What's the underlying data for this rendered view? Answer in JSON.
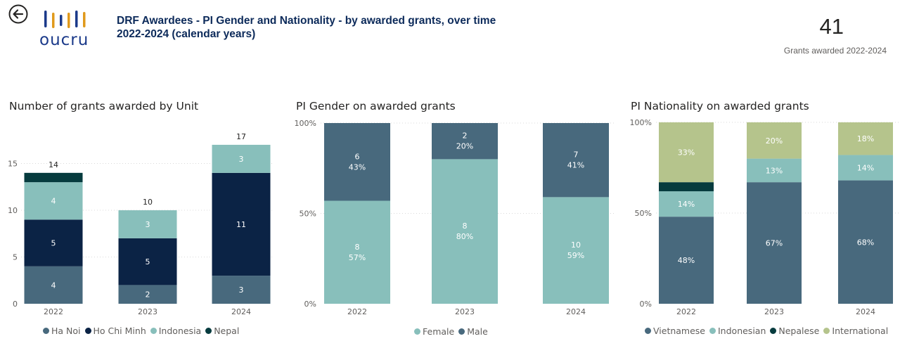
{
  "header": {
    "logo_text": "oucru",
    "title_line1": "DRF Awardees - PI Gender and Nationality - by awarded grants, over time",
    "title_line2": "2022-2024 (calendar years)",
    "kpi_value": "41",
    "kpi_label": "Grants awarded 2022-2024"
  },
  "colors": {
    "ha_noi": "#48697d",
    "ho_chi_minh": "#0b2345",
    "indonesia": "#88bfbb",
    "nepal": "#063b3e",
    "female": "#88bfbb",
    "male": "#48697d",
    "vietnamese": "#48697d",
    "indonesian": "#88bfbb",
    "nepalese": "#063b3e",
    "international": "#b5c48c"
  },
  "chart_data": [
    {
      "type": "bar",
      "stacked": true,
      "title": "Number of grants awarded by Unit",
      "categories": [
        "2022",
        "2023",
        "2024"
      ],
      "series": [
        {
          "name": "Ha Noi",
          "key": "ha_noi",
          "values": [
            4,
            2,
            3
          ],
          "labels": [
            "4",
            "2",
            "3"
          ]
        },
        {
          "name": "Ho Chi Minh",
          "key": "ho_chi_minh",
          "values": [
            5,
            5,
            11
          ],
          "labels": [
            "5",
            "5",
            "11"
          ]
        },
        {
          "name": "Indonesia",
          "key": "indonesia",
          "values": [
            4,
            3,
            3
          ],
          "labels": [
            "4",
            "3",
            "3"
          ]
        },
        {
          "name": "Nepal",
          "key": "nepal",
          "values": [
            1,
            0,
            0
          ],
          "labels": [
            "",
            "",
            ""
          ]
        }
      ],
      "totals": [
        "14",
        "10",
        "17"
      ],
      "yticks": [
        "0",
        "5",
        "10",
        "15"
      ],
      "ylim": [
        0,
        18.5
      ],
      "legend_position": "bottom"
    },
    {
      "type": "bar",
      "stacked": true,
      "percent": true,
      "title": "PI Gender on awarded grants",
      "categories": [
        "2022",
        "2023",
        "2024"
      ],
      "series": [
        {
          "name": "Female",
          "key": "female",
          "values": [
            57,
            80,
            59
          ],
          "counts": [
            "8",
            "8",
            "10"
          ],
          "pct": [
            "57%",
            "80%",
            "59%"
          ]
        },
        {
          "name": "Male",
          "key": "male",
          "values": [
            43,
            20,
            41
          ],
          "counts": [
            "6",
            "2",
            "7"
          ],
          "pct": [
            "43%",
            "20%",
            "41%"
          ]
        }
      ],
      "yticks": [
        "0%",
        "50%",
        "100%"
      ],
      "ylim": [
        0,
        100
      ],
      "legend_position": "bottom"
    },
    {
      "type": "bar",
      "stacked": true,
      "percent": true,
      "title": "PI Nationality on awarded grants",
      "categories": [
        "2022",
        "2023",
        "2024"
      ],
      "series": [
        {
          "name": "Vietnamese",
          "key": "vietnamese",
          "values": [
            48,
            67,
            68
          ],
          "pct": [
            "48%",
            "67%",
            "68%"
          ]
        },
        {
          "name": "Indonesian",
          "key": "indonesian",
          "values": [
            14,
            13,
            14
          ],
          "pct": [
            "14%",
            "13%",
            "14%"
          ]
        },
        {
          "name": "Nepalese",
          "key": "nepalese",
          "values": [
            5,
            0,
            0
          ],
          "pct": [
            "",
            "",
            ""
          ]
        },
        {
          "name": "International",
          "key": "international",
          "values": [
            33,
            20,
            18
          ],
          "pct": [
            "33%",
            "20%",
            "18%"
          ]
        }
      ],
      "yticks": [
        "0%",
        "50%",
        "100%"
      ],
      "ylim": [
        0,
        100
      ],
      "legend_position": "bottom"
    }
  ]
}
